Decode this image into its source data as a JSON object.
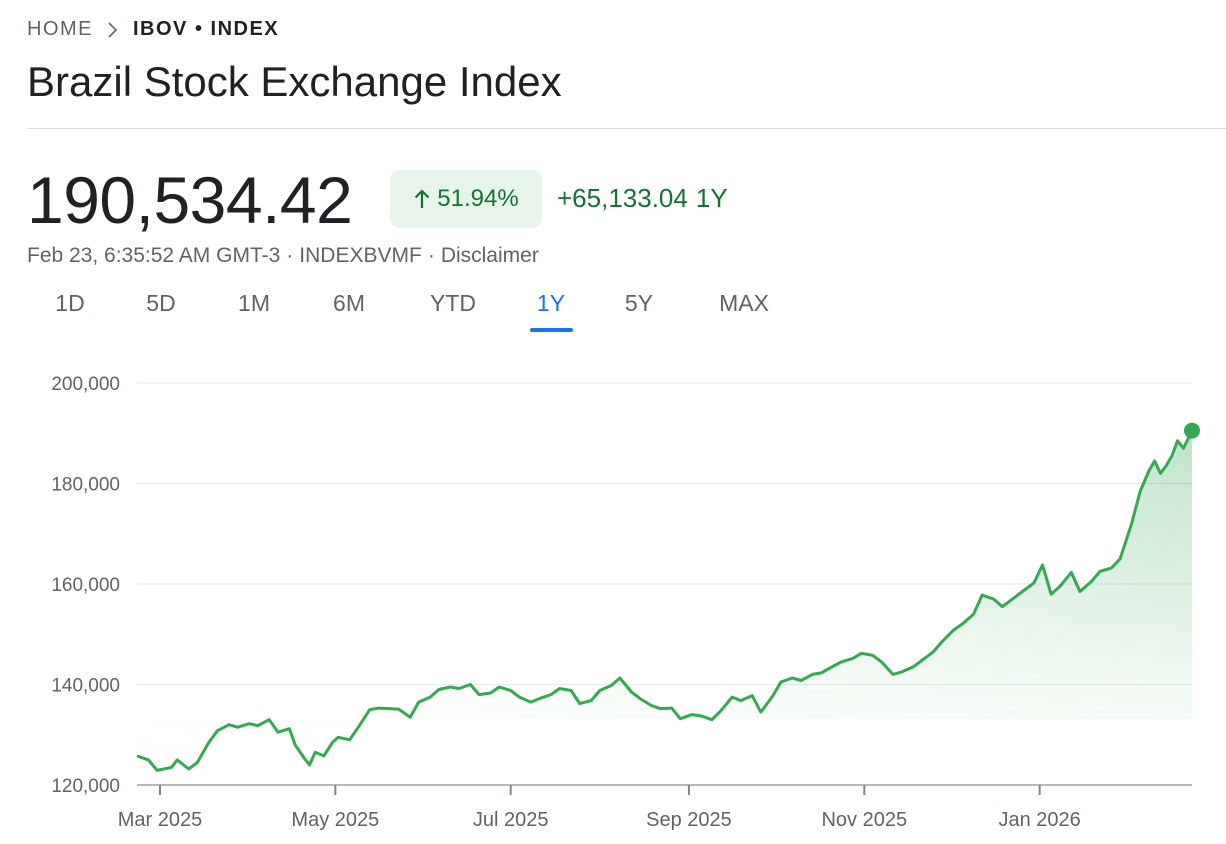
{
  "breadcrumb": {
    "home": "HOME",
    "current": "IBOV • INDEX"
  },
  "title": "Brazil Stock Exchange Index",
  "quote": {
    "price": "190,534.42",
    "percent_change": "51.94%",
    "change": "+65,133.04",
    "period": "1Y",
    "timestamp": "Feb 23, 6:35:52 AM GMT-3",
    "exchange": "INDEXBVMF",
    "disclaimer": "Disclaimer"
  },
  "tabs": [
    {
      "label": "1D",
      "active": false
    },
    {
      "label": "5D",
      "active": false
    },
    {
      "label": "1M",
      "active": false
    },
    {
      "label": "6M",
      "active": false
    },
    {
      "label": "YTD",
      "active": false
    },
    {
      "label": "1Y",
      "active": true
    },
    {
      "label": "5Y",
      "active": false
    },
    {
      "label": "MAX",
      "active": false
    }
  ],
  "colors": {
    "up": "#137333",
    "line": "#34a853",
    "accent": "#1a73e8",
    "badge_bg": "#e6f4ea"
  },
  "chart_data": {
    "type": "area",
    "ylim": [
      120000,
      200000
    ],
    "yticks": [
      120000,
      140000,
      160000,
      180000,
      200000
    ],
    "ytick_labels": [
      "120,000",
      "140,000",
      "160,000",
      "180,000",
      "200,000"
    ],
    "xlim": [
      "2025-02-21",
      "2026-02-23"
    ],
    "xticks": [
      {
        "date": "2025-03-01",
        "label": "Mar 2025"
      },
      {
        "date": "2025-05-01",
        "label": "May 2025"
      },
      {
        "date": "2025-07-01",
        "label": "Jul 2025"
      },
      {
        "date": "2025-09-01",
        "label": "Sep 2025"
      },
      {
        "date": "2025-11-01",
        "label": "Nov 2025"
      },
      {
        "date": "2026-01-01",
        "label": "Jan 2026"
      }
    ],
    "grid": true,
    "series": [
      {
        "points": [
          [
            "2025-02-21",
            125800
          ],
          [
            "2025-02-25",
            125000
          ],
          [
            "2025-02-28",
            122900
          ],
          [
            "2025-03-05",
            123500
          ],
          [
            "2025-03-07",
            125000
          ],
          [
            "2025-03-11",
            123200
          ],
          [
            "2025-03-14",
            124500
          ],
          [
            "2025-03-18",
            128500
          ],
          [
            "2025-03-21",
            130800
          ],
          [
            "2025-03-25",
            132000
          ],
          [
            "2025-03-28",
            131500
          ],
          [
            "2025-04-01",
            132200
          ],
          [
            "2025-04-04",
            131800
          ],
          [
            "2025-04-08",
            133000
          ],
          [
            "2025-04-11",
            130500
          ],
          [
            "2025-04-15",
            131200
          ],
          [
            "2025-04-17",
            128000
          ],
          [
            "2025-04-20",
            125500
          ],
          [
            "2025-04-22",
            124000
          ],
          [
            "2025-04-24",
            126500
          ],
          [
            "2025-04-27",
            125800
          ],
          [
            "2025-04-30",
            128500
          ],
          [
            "2025-05-02",
            129500
          ],
          [
            "2025-05-06",
            129000
          ],
          [
            "2025-05-09",
            131500
          ],
          [
            "2025-05-13",
            135000
          ],
          [
            "2025-05-16",
            135300
          ],
          [
            "2025-05-20",
            135200
          ],
          [
            "2025-05-23",
            135100
          ],
          [
            "2025-05-27",
            133500
          ],
          [
            "2025-05-30",
            136500
          ],
          [
            "2025-06-03",
            137500
          ],
          [
            "2025-06-06",
            139000
          ],
          [
            "2025-06-10",
            139500
          ],
          [
            "2025-06-13",
            139200
          ],
          [
            "2025-06-17",
            140000
          ],
          [
            "2025-06-20",
            138000
          ],
          [
            "2025-06-24",
            138300
          ],
          [
            "2025-06-27",
            139500
          ],
          [
            "2025-07-01",
            138800
          ],
          [
            "2025-07-04",
            137500
          ],
          [
            "2025-07-08",
            136500
          ],
          [
            "2025-07-11",
            137200
          ],
          [
            "2025-07-15",
            138000
          ],
          [
            "2025-07-18",
            139200
          ],
          [
            "2025-07-22",
            138800
          ],
          [
            "2025-07-25",
            136200
          ],
          [
            "2025-07-29",
            136800
          ],
          [
            "2025-08-01",
            138800
          ],
          [
            "2025-08-05",
            139800
          ],
          [
            "2025-08-08",
            141300
          ],
          [
            "2025-08-12",
            138500
          ],
          [
            "2025-08-15",
            137200
          ],
          [
            "2025-08-19",
            135800
          ],
          [
            "2025-08-22",
            135200
          ],
          [
            "2025-08-26",
            135300
          ],
          [
            "2025-08-29",
            133200
          ],
          [
            "2025-09-02",
            134000
          ],
          [
            "2025-09-05",
            133800
          ],
          [
            "2025-09-09",
            133000
          ],
          [
            "2025-09-12",
            134700
          ],
          [
            "2025-09-16",
            137500
          ],
          [
            "2025-09-19",
            136800
          ],
          [
            "2025-09-23",
            137800
          ],
          [
            "2025-09-26",
            134500
          ],
          [
            "2025-09-30",
            137600
          ],
          [
            "2025-10-03",
            140500
          ],
          [
            "2025-10-07",
            141300
          ],
          [
            "2025-10-10",
            140800
          ],
          [
            "2025-10-14",
            142000
          ],
          [
            "2025-10-17",
            142300
          ],
          [
            "2025-10-21",
            143600
          ],
          [
            "2025-10-24",
            144500
          ],
          [
            "2025-10-28",
            145200
          ],
          [
            "2025-10-31",
            146200
          ],
          [
            "2025-11-04",
            145800
          ],
          [
            "2025-11-07",
            144500
          ],
          [
            "2025-11-11",
            142000
          ],
          [
            "2025-11-14",
            142500
          ],
          [
            "2025-11-18",
            143500
          ],
          [
            "2025-11-21",
            144800
          ],
          [
            "2025-11-25",
            146500
          ],
          [
            "2025-11-28",
            148500
          ],
          [
            "2025-12-02",
            150800
          ],
          [
            "2025-12-05",
            152000
          ],
          [
            "2025-12-09",
            154000
          ],
          [
            "2025-12-12",
            157800
          ],
          [
            "2025-12-16",
            157000
          ],
          [
            "2025-12-19",
            155500
          ],
          [
            "2025-12-23",
            157200
          ],
          [
            "2025-12-26",
            158500
          ],
          [
            "2025-12-30",
            160200
          ],
          [
            "2026-01-02",
            163800
          ],
          [
            "2026-01-05",
            158000
          ],
          [
            "2026-01-08",
            159500
          ],
          [
            "2026-01-12",
            162300
          ],
          [
            "2026-01-15",
            158500
          ],
          [
            "2026-01-19",
            160500
          ],
          [
            "2026-01-22",
            162500
          ],
          [
            "2026-01-26",
            163200
          ],
          [
            "2026-01-29",
            165000
          ],
          [
            "2026-02-02",
            172000
          ],
          [
            "2026-02-05",
            178500
          ],
          [
            "2026-02-08",
            182500
          ],
          [
            "2026-02-10",
            184500
          ],
          [
            "2026-02-12",
            182000
          ],
          [
            "2026-02-14",
            183500
          ],
          [
            "2026-02-16",
            185500
          ],
          [
            "2026-02-18",
            188500
          ],
          [
            "2026-02-20",
            187000
          ],
          [
            "2026-02-23",
            190534.42
          ]
        ]
      }
    ]
  }
}
